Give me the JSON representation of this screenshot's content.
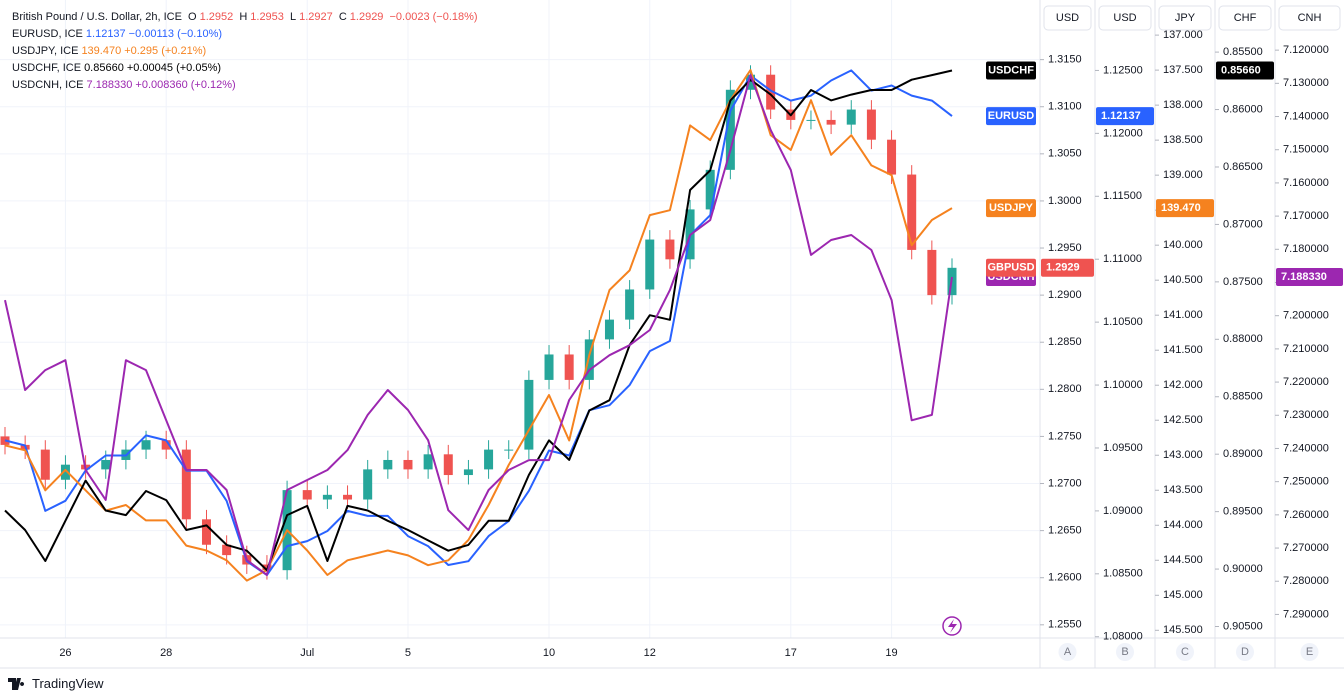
{
  "legend": {
    "main": {
      "title": "British Pound / U.S. Dollar, 2h, ICE",
      "o_label": "O",
      "open": "1.2952",
      "h_label": "H",
      "high": "1.2953",
      "l_label": "L",
      "low": "1.2927",
      "c_label": "C",
      "close": "1.2929",
      "change": "−0.0023 (−0.18%)"
    },
    "rows": [
      {
        "name": "EURUSD, ICE",
        "value": "1.12137",
        "change": "−0.00113 (−0.10%)"
      },
      {
        "name": "USDJPY, ICE",
        "value": "139.470",
        "change": "+0.295 (+0.21%)"
      },
      {
        "name": "USDCHF, ICE",
        "value": "0.85660",
        "change": "+0.00045 (+0.05%)"
      },
      {
        "name": "USDCNH, ICE",
        "value": "7.188330",
        "change": "+0.008360 (+0.12%)"
      }
    ]
  },
  "footer": "TradingView",
  "chart_data": {
    "type": "candlestick",
    "grid": true,
    "categories": [
      null,
      null,
      null,
      "26",
      null,
      null,
      null,
      null,
      "28",
      null,
      null,
      null,
      null,
      null,
      null,
      "Jul",
      null,
      null,
      null,
      null,
      "5",
      null,
      null,
      null,
      null,
      null,
      null,
      "10",
      null,
      null,
      null,
      null,
      "12",
      null,
      null,
      null,
      null,
      null,
      null,
      "17",
      null,
      null,
      null,
      null,
      "19",
      null,
      null,
      null
    ],
    "axes": [
      {
        "name": "USD",
        "letter": "A",
        "ylim": [
          1.2536,
          1.3208
        ],
        "yticks": [
          {
            "value": 1.315,
            "label": "1.3150"
          },
          {
            "value": 1.31,
            "label": "1.3100"
          },
          {
            "value": 1.305,
            "label": "1.3050"
          },
          {
            "value": 1.3,
            "label": "1.3000"
          },
          {
            "value": 1.295,
            "label": "1.2950"
          },
          {
            "value": 1.29,
            "label": "1.2900"
          },
          {
            "value": 1.285,
            "label": "1.2850"
          },
          {
            "value": 1.28,
            "label": "1.2800"
          },
          {
            "value": 1.275,
            "label": "1.2750"
          },
          {
            "value": 1.27,
            "label": "1.2700"
          },
          {
            "value": 1.265,
            "label": "1.2650"
          },
          {
            "value": 1.26,
            "label": "1.2600"
          },
          {
            "value": 1.255,
            "label": "1.2550"
          }
        ]
      },
      {
        "name": "USD",
        "letter": "B",
        "ylim": [
          1.0799,
          1.1302
        ],
        "yticks": [
          {
            "value": 1.125,
            "label": "1.12500"
          },
          {
            "value": 1.12,
            "label": "1.12000"
          },
          {
            "value": 1.115,
            "label": "1.11500"
          },
          {
            "value": 1.11,
            "label": "1.11000"
          },
          {
            "value": 1.105,
            "label": "1.10500"
          },
          {
            "value": 1.1,
            "label": "1.10000"
          },
          {
            "value": 1.095,
            "label": "1.09500"
          },
          {
            "value": 1.09,
            "label": "1.09000"
          },
          {
            "value": 1.085,
            "label": "1.08500"
          },
          {
            "value": 1.08,
            "label": "1.08000"
          }
        ]
      },
      {
        "name": "JPY",
        "letter": "C",
        "ylim": [
          145.61,
          136.57
        ],
        "yticks": [
          {
            "value": 137,
            "label": "137.000"
          },
          {
            "value": 137.5,
            "label": "137.500"
          },
          {
            "value": 138,
            "label": "138.000"
          },
          {
            "value": 138.5,
            "label": "138.500"
          },
          {
            "value": 139,
            "label": "139.000"
          },
          {
            "value": 139.5,
            "label": "139.500"
          },
          {
            "value": 140,
            "label": "140.000"
          },
          {
            "value": 140.5,
            "label": "140.500"
          },
          {
            "value": 141,
            "label": "141.000"
          },
          {
            "value": 141.5,
            "label": "141.500"
          },
          {
            "value": 142,
            "label": "142.000"
          },
          {
            "value": 142.5,
            "label": "142.500"
          },
          {
            "value": 143,
            "label": "143.000"
          },
          {
            "value": 143.5,
            "label": "143.500"
          },
          {
            "value": 144,
            "label": "144.000"
          },
          {
            "value": 144.5,
            "label": "144.500"
          },
          {
            "value": 145,
            "label": "145.000"
          },
          {
            "value": 145.5,
            "label": "145.500"
          }
        ]
      },
      {
        "name": "CHF",
        "letter": "D",
        "ylim": [
          0.906,
          0.8509
        ],
        "yticks": [
          {
            "value": 0.855,
            "label": "0.85500"
          },
          {
            "value": 0.86,
            "label": "0.86000"
          },
          {
            "value": 0.865,
            "label": "0.86500"
          },
          {
            "value": 0.87,
            "label": "0.87000"
          },
          {
            "value": 0.875,
            "label": "0.87500"
          },
          {
            "value": 0.88,
            "label": "0.88000"
          },
          {
            "value": 0.885,
            "label": "0.88500"
          },
          {
            "value": 0.89,
            "label": "0.89000"
          },
          {
            "value": 0.895,
            "label": "0.89500"
          },
          {
            "value": 0.9,
            "label": "0.90000"
          },
          {
            "value": 0.905,
            "label": "0.90500"
          }
        ]
      },
      {
        "name": "CNH",
        "letter": "E",
        "ylim": [
          7.2971,
          7.1064
        ],
        "yticks": [
          {
            "value": 7.12,
            "label": "7.120000"
          },
          {
            "value": 7.13,
            "label": "7.130000"
          },
          {
            "value": 7.14,
            "label": "7.140000"
          },
          {
            "value": 7.15,
            "label": "7.150000"
          },
          {
            "value": 7.16,
            "label": "7.160000"
          },
          {
            "value": 7.17,
            "label": "7.170000"
          },
          {
            "value": 7.18,
            "label": "7.180000"
          },
          {
            "value": 7.19,
            "label": "7.190000"
          },
          {
            "value": 7.2,
            "label": "7.200000"
          },
          {
            "value": 7.21,
            "label": "7.210000"
          },
          {
            "value": 7.22,
            "label": "7.220000"
          },
          {
            "value": 7.23,
            "label": "7.230000"
          },
          {
            "value": 7.24,
            "label": "7.240000"
          },
          {
            "value": 7.25,
            "label": "7.250000"
          },
          {
            "value": 7.26,
            "label": "7.260000"
          },
          {
            "value": 7.27,
            "label": "7.270000"
          },
          {
            "value": 7.28,
            "label": "7.280000"
          },
          {
            "value": 7.29,
            "label": "7.290000"
          }
        ]
      }
    ],
    "series": [
      {
        "name": "GBPUSD",
        "type": "candlestick",
        "axis": 0,
        "up_color": "#26a69a",
        "down_color": "#ef5350",
        "last_label": "1.2929",
        "open": [
          1.275,
          1.2741,
          1.2736,
          1.2704,
          1.272,
          1.2715,
          1.2725,
          1.2736,
          1.2746,
          1.2736,
          1.2662,
          1.2635,
          1.2624,
          1.2614,
          1.2608,
          1.2693,
          1.2683,
          1.2688,
          1.2683,
          1.2715,
          1.2725,
          1.2715,
          1.2731,
          1.2709,
          1.2715,
          1.2736,
          1.2736,
          1.281,
          1.2837,
          1.281,
          1.2853,
          1.2874,
          1.2906,
          1.2959,
          1.2938,
          1.2991,
          1.3033,
          1.3118,
          1.3134,
          1.3097,
          1.3086,
          1.3086,
          1.3081,
          1.3097,
          1.3065,
          1.3028,
          1.2948,
          1.29
        ],
        "high": [
          1.276,
          1.2751,
          1.2746,
          1.273,
          1.273,
          1.2735,
          1.2746,
          1.2756,
          1.2756,
          1.2746,
          1.2672,
          1.2645,
          1.2634,
          1.2624,
          1.2703,
          1.2703,
          1.2698,
          1.2698,
          1.2725,
          1.2735,
          1.2735,
          1.2741,
          1.2741,
          1.2725,
          1.2746,
          1.2746,
          1.282,
          1.2847,
          1.2847,
          1.2863,
          1.2884,
          1.2916,
          1.2969,
          1.2969,
          1.3001,
          1.3043,
          1.3128,
          1.3144,
          1.3144,
          1.3107,
          1.3096,
          1.3096,
          1.3107,
          1.3107,
          1.3075,
          1.3038,
          1.2958,
          1.2939
        ],
        "low": [
          1.2731,
          1.2726,
          1.2694,
          1.2694,
          1.2705,
          1.2705,
          1.2715,
          1.2726,
          1.2726,
          1.2652,
          1.2625,
          1.2614,
          1.2604,
          1.2598,
          1.2598,
          1.2673,
          1.2673,
          1.2673,
          1.2673,
          1.2705,
          1.2705,
          1.2705,
          1.2699,
          1.2699,
          1.2705,
          1.2726,
          1.2726,
          1.28,
          1.28,
          1.28,
          1.2843,
          1.2864,
          1.2896,
          1.2928,
          1.2928,
          1.2981,
          1.3023,
          1.3108,
          1.3087,
          1.3076,
          1.3076,
          1.3071,
          1.3071,
          1.3055,
          1.3018,
          1.2938,
          1.289,
          1.289
        ],
        "close": [
          1.2741,
          1.2736,
          1.2704,
          1.272,
          1.2715,
          1.2725,
          1.2736,
          1.2746,
          1.2736,
          1.2662,
          1.2635,
          1.2624,
          1.2614,
          1.2608,
          1.2693,
          1.2683,
          1.2688,
          1.2683,
          1.2715,
          1.2725,
          1.2715,
          1.2731,
          1.2709,
          1.2715,
          1.2736,
          1.2736,
          1.281,
          1.2837,
          1.281,
          1.2853,
          1.2874,
          1.2906,
          1.2959,
          1.2938,
          1.2991,
          1.3033,
          1.3118,
          1.3134,
          1.3097,
          1.3086,
          1.3086,
          1.3081,
          1.3097,
          1.3065,
          1.3028,
          1.2948,
          1.29,
          1.2929
        ]
      },
      {
        "name": "EURUSD",
        "type": "line",
        "axis": 1,
        "color": "#2962ff",
        "last_label": "1.12137",
        "values": [
          1.0956,
          1.0952,
          1.09,
          1.0908,
          1.0932,
          1.0944,
          1.0944,
          1.096,
          1.0956,
          1.0932,
          1.0932,
          1.0908,
          1.086,
          1.0849,
          1.0872,
          1.0876,
          1.0884,
          1.09,
          1.0896,
          1.0896,
          1.088,
          1.0872,
          1.0857,
          1.086,
          1.088,
          1.0892,
          1.0916,
          1.0948,
          1.0944,
          1.098,
          1.0984,
          1.1,
          1.1027,
          1.1035,
          1.1119,
          1.1135,
          1.1218,
          1.1246,
          1.1234,
          1.1226,
          1.123,
          1.1242,
          1.125,
          1.1234,
          1.1238,
          1.123,
          1.1226,
          1.12137
        ]
      },
      {
        "name": "USDJPY",
        "type": "line",
        "axis": 2,
        "color": "#f5821f",
        "last_label": "139.470",
        "values": [
          142.86,
          142.93,
          143.5,
          143.21,
          143.5,
          143.79,
          143.71,
          143.93,
          143.93,
          144.29,
          144.36,
          144.5,
          144.79,
          144.64,
          144.07,
          144.36,
          144.71,
          144.5,
          144.43,
          144.36,
          144.43,
          144.57,
          144.5,
          144.21,
          143.71,
          143.14,
          142.64,
          142.14,
          142.79,
          141.57,
          140.64,
          140.36,
          139.57,
          139.5,
          138.29,
          138.5,
          137.93,
          137.5,
          138.43,
          138.64,
          137.93,
          138.71,
          138.43,
          138.86,
          139.0,
          140.0,
          139.64,
          139.47
        ]
      },
      {
        "name": "USDCHF",
        "type": "line",
        "axis": 3,
        "color": "#000000",
        "last_label": "0.85660",
        "values": [
          0.8949,
          0.8966,
          0.8993,
          0.8958,
          0.8923,
          0.8949,
          0.8953,
          0.8932,
          0.894,
          0.8966,
          0.8962,
          0.8979,
          0.8984,
          0.9001,
          0.8953,
          0.8945,
          0.8993,
          0.8945,
          0.8949,
          0.8958,
          0.8966,
          0.8975,
          0.8984,
          0.8979,
          0.8958,
          0.8958,
          0.8918,
          0.8888,
          0.8905,
          0.8862,
          0.8853,
          0.8805,
          0.8779,
          0.8783,
          0.867,
          0.8653,
          0.8592,
          0.8574,
          0.8587,
          0.8605,
          0.8583,
          0.8592,
          0.8587,
          0.8583,
          0.8583,
          0.8574,
          0.857,
          0.8566
        ]
      },
      {
        "name": "USDCNH",
        "type": "line",
        "axis": 4,
        "color": "#9c27b0",
        "last_label": "7.188330",
        "values": [
          7.1953,
          7.2224,
          7.2164,
          7.2134,
          7.2465,
          7.2555,
          7.2134,
          7.2164,
          7.2315,
          7.2465,
          7.2465,
          7.2525,
          7.2736,
          7.2781,
          7.2525,
          7.2495,
          7.2465,
          7.2405,
          7.2299,
          7.2224,
          7.2284,
          7.2375,
          7.2586,
          7.2646,
          7.2525,
          7.2465,
          7.2435,
          7.2435,
          7.2254,
          7.2164,
          7.2119,
          7.2089,
          7.2043,
          7.1923,
          7.1757,
          7.1712,
          7.1501,
          7.1275,
          7.1441,
          7.1561,
          7.1817,
          7.1772,
          7.1757,
          7.1802,
          7.1953,
          7.2315,
          7.2299,
          7.18833
        ]
      }
    ]
  }
}
